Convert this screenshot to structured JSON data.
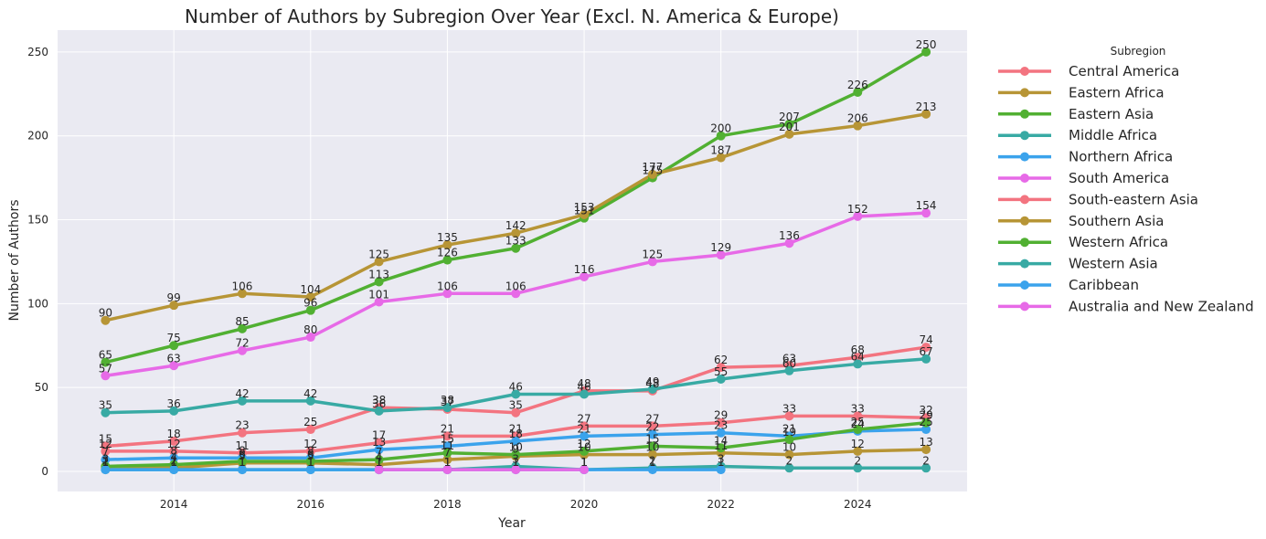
{
  "chart_data": {
    "type": "line",
    "title": "Number of Authors by Subregion Over Year (Excl. N. America & Europe)",
    "xlabel": "Year",
    "ylabel": "Number of Authors",
    "xlim": [
      2012.3,
      2025.6
    ],
    "ylim": [
      -12,
      263
    ],
    "xticks": [
      2014,
      2016,
      2018,
      2020,
      2022,
      2024
    ],
    "yticks": [
      0,
      50,
      100,
      150,
      200,
      250
    ],
    "grid": true,
    "legend_title": "Subregion",
    "legend_position": "outside-right",
    "series": [
      {
        "name": "Central America",
        "color": "#f37480",
        "x": [
          2013,
          2014,
          2015,
          2016,
          2017,
          2018,
          2019,
          2020,
          2021,
          2022,
          2023,
          2024,
          2025
        ],
        "values": [
          12,
          12,
          11,
          12,
          17,
          21,
          21,
          27,
          27,
          29,
          33,
          33,
          32
        ]
      },
      {
        "name": "Eastern Africa",
        "color": "#b79536",
        "x": [
          2013,
          2014,
          2015,
          2016,
          2017,
          2018,
          2019,
          2020,
          2021,
          2022,
          2023,
          2024,
          2025
        ],
        "values": [
          2,
          2,
          5,
          5,
          4,
          7,
          9,
          10,
          10,
          11,
          10,
          12,
          13
        ]
      },
      {
        "name": "Eastern Asia",
        "color": "#51b032",
        "x": [
          2013,
          2014,
          2015,
          2016,
          2017,
          2018,
          2019,
          2020,
          2021,
          2022,
          2023,
          2024,
          2025
        ],
        "values": [
          65,
          75,
          85,
          96,
          113,
          126,
          133,
          151,
          175,
          200,
          207,
          226,
          250
        ]
      },
      {
        "name": "Middle Africa",
        "color": "#38aaa4",
        "x": [
          2013,
          2014,
          2015,
          2016,
          2017,
          2018,
          2019,
          2020,
          2021,
          2022,
          2023,
          2024,
          2025
        ],
        "values": [
          1,
          1,
          1,
          1,
          1,
          1,
          3,
          1,
          2,
          3,
          2,
          2,
          2
        ]
      },
      {
        "name": "Northern Africa",
        "color": "#3ba3ec",
        "x": [
          2013,
          2014,
          2015,
          2016,
          2017,
          2018,
          2019,
          2020,
          2021,
          2022,
          2023,
          2024,
          2025
        ],
        "values": [
          7,
          8,
          8,
          8,
          13,
          15,
          18,
          21,
          22,
          23,
          21,
          24,
          25
        ]
      },
      {
        "name": "South America",
        "color": "#e76ae7",
        "x": [
          2013,
          2014,
          2015,
          2016,
          2017,
          2018,
          2019,
          2020,
          2021,
          2022,
          2023,
          2024,
          2025
        ],
        "values": [
          57,
          63,
          72,
          80,
          101,
          106,
          106,
          116,
          125,
          129,
          136,
          152,
          154
        ]
      },
      {
        "name": "South-eastern Asia",
        "color": "#f37480",
        "x": [
          2013,
          2014,
          2015,
          2016,
          2017,
          2018,
          2019,
          2020,
          2021,
          2022,
          2023,
          2024,
          2025
        ],
        "values": [
          15,
          18,
          23,
          25,
          38,
          37,
          35,
          48,
          48,
          62,
          63,
          68,
          74
        ]
      },
      {
        "name": "Southern Asia",
        "color": "#b79536",
        "x": [
          2013,
          2014,
          2015,
          2016,
          2017,
          2018,
          2019,
          2020,
          2021,
          2022,
          2023,
          2024,
          2025
        ],
        "values": [
          90,
          99,
          106,
          104,
          125,
          135,
          142,
          153,
          177,
          187,
          201,
          206,
          213
        ]
      },
      {
        "name": "Western Africa",
        "color": "#51b032",
        "x": [
          2013,
          2014,
          2015,
          2016,
          2017,
          2018,
          2019,
          2020,
          2021,
          2022,
          2023,
          2024,
          2025
        ],
        "values": [
          3,
          4,
          6,
          6,
          7,
          11,
          10,
          12,
          15,
          14,
          19,
          25,
          29
        ]
      },
      {
        "name": "Western Asia",
        "color": "#38aaa4",
        "x": [
          2013,
          2014,
          2015,
          2016,
          2017,
          2018,
          2019,
          2020,
          2021,
          2022,
          2023,
          2024,
          2025
        ],
        "values": [
          35,
          36,
          42,
          42,
          36,
          38,
          46,
          46,
          49,
          55,
          60,
          64,
          67
        ]
      },
      {
        "name": "Caribbean",
        "color": "#3ba3ec",
        "x": [
          2013,
          2014,
          2015,
          2016,
          2017,
          2018,
          2019,
          2020,
          2021,
          2022
        ],
        "values": [
          1,
          1,
          1,
          1,
          1,
          1,
          1,
          1,
          1,
          1
        ]
      },
      {
        "name": "Australia and New Zealand",
        "color": "#e76ae7",
        "x": [
          2017,
          2018,
          2019,
          2020
        ],
        "values": [
          1,
          1,
          1,
          1
        ]
      }
    ]
  }
}
